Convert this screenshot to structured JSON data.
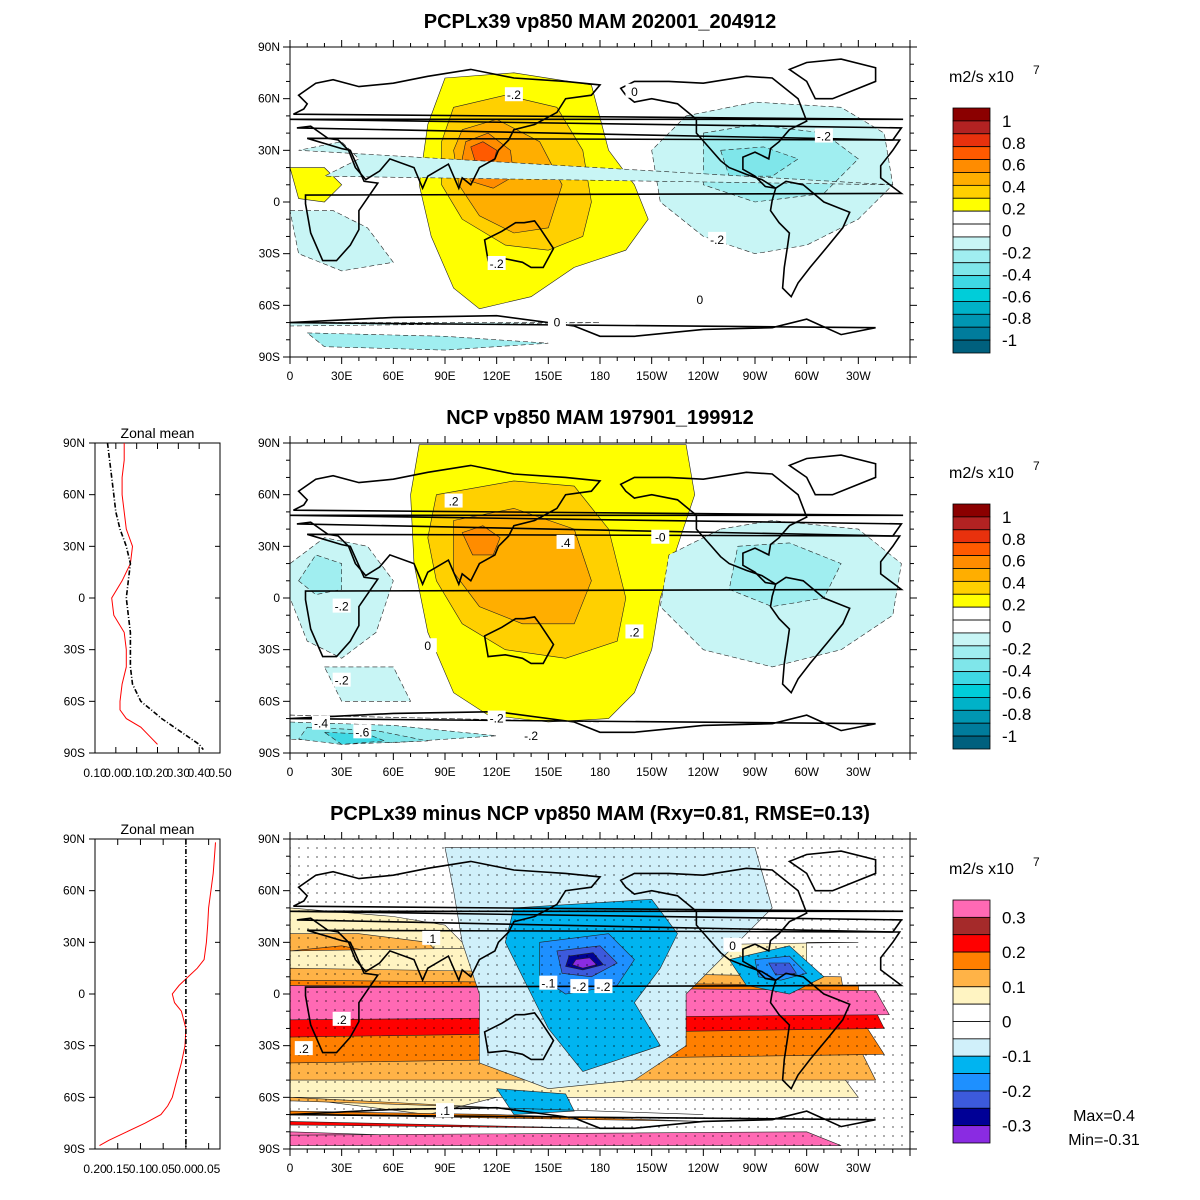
{
  "chart_data": [
    {
      "type": "contour-map",
      "title": "PCPLx39 vp850 MAM 202001_204912",
      "units": "m2/s x10",
      "units_exponent": "7",
      "xticks": [
        "0",
        "30E",
        "60E",
        "90E",
        "120E",
        "150E",
        "180",
        "150W",
        "120W",
        "90W",
        "60W",
        "30W"
      ],
      "yticks": [
        "90N",
        "60N",
        "30N",
        "0",
        "30S",
        "60S",
        "90S"
      ],
      "colorbar": {
        "labels": [
          "1",
          "0.8",
          "0.6",
          "0.4",
          "0.2",
          "0",
          "-0.2",
          "-0.4",
          "-0.6",
          "-0.8",
          "-1"
        ],
        "colors": [
          "#8b0000",
          "#b22222",
          "#e8310d",
          "#ff5a00",
          "#ff8c00",
          "#ffae00",
          "#ffd000",
          "#ffff00",
          "#ffffff",
          "#ffffff",
          "#c8f5f5",
          "#a0eef0",
          "#7fe6ea",
          "#3fd8e4",
          "#00cdd9",
          "#00b2c8",
          "#0096b2",
          "#007c9c",
          "#00607e"
        ]
      },
      "contour_labels": [
        {
          "text": "-.2",
          "lon": 130,
          "lat": 62
        },
        {
          "text": "0",
          "lon": 200,
          "lat": 64
        },
        {
          "text": "-.2",
          "lon": 310,
          "lat": 38
        },
        {
          "text": "-.2",
          "lon": 248,
          "lat": -22
        },
        {
          "text": "-.2",
          "lon": 120,
          "lat": -36
        },
        {
          "text": "0",
          "lon": 238,
          "lat": -57
        },
        {
          "text": "0",
          "lon": 155,
          "lat": -70
        }
      ]
    },
    {
      "type": "contour-map",
      "title": "NCP vp850 MAM 197901_199912",
      "units": "m2/s x10",
      "units_exponent": "7",
      "xticks": [
        "0",
        "30E",
        "60E",
        "90E",
        "120E",
        "150E",
        "180",
        "150W",
        "120W",
        "90W",
        "60W",
        "30W"
      ],
      "yticks": [
        "90N",
        "60N",
        "30N",
        "0",
        "30S",
        "60S",
        "90S"
      ],
      "colorbar": {
        "labels": [
          "1",
          "0.8",
          "0.6",
          "0.4",
          "0.2",
          "0",
          "-0.2",
          "-0.4",
          "-0.6",
          "-0.8",
          "-1"
        ],
        "colors": [
          "#8b0000",
          "#b22222",
          "#e8310d",
          "#ff5a00",
          "#ff8c00",
          "#ffae00",
          "#ffd000",
          "#ffff00",
          "#ffffff",
          "#ffffff",
          "#c8f5f5",
          "#a0eef0",
          "#7fe6ea",
          "#3fd8e4",
          "#00cdd9",
          "#00b2c8",
          "#0096b2",
          "#007c9c",
          "#00607e"
        ]
      },
      "contour_labels": [
        {
          "text": ".2",
          "lon": 95,
          "lat": 56
        },
        {
          "text": ".4",
          "lon": 160,
          "lat": 32
        },
        {
          "text": "-0",
          "lon": 215,
          "lat": 35
        },
        {
          "text": "-.2",
          "lon": 30,
          "lat": -5
        },
        {
          "text": "0",
          "lon": 80,
          "lat": -28
        },
        {
          "text": ".2",
          "lon": 200,
          "lat": -20
        },
        {
          "text": "-.2",
          "lon": 30,
          "lat": -48
        },
        {
          "text": "-.4",
          "lon": 18,
          "lat": -73
        },
        {
          "text": "-.6",
          "lon": 42,
          "lat": -78
        },
        {
          "text": "-.2",
          "lon": 120,
          "lat": -70
        },
        {
          "text": "-.2",
          "lon": 140,
          "lat": -80
        }
      ],
      "zonal_mean": {
        "title": "Zonal mean",
        "xticks": [
          "0.10",
          "0.00",
          "0.10",
          "0.20",
          "0.30",
          "0.40",
          "0.50"
        ],
        "xlim": [
          -0.1,
          0.5
        ],
        "yticks": [
          "90N",
          "60N",
          "30N",
          "0",
          "30S",
          "60S",
          "90S"
        ],
        "series": [
          {
            "name": "PCPLx39",
            "color": "#ff0000",
            "lat": [
              90,
              80,
              70,
              60,
              50,
              40,
              30,
              20,
              10,
              0,
              -10,
              -20,
              -30,
              -40,
              -50,
              -60,
              -65,
              -70,
              -75,
              -80,
              -85
            ],
            "values": [
              0.04,
              0.04,
              0.03,
              0.03,
              0.04,
              0.05,
              0.08,
              0.07,
              0.03,
              -0.02,
              -0.01,
              0.04,
              0.05,
              0.05,
              0.03,
              0.02,
              0.02,
              0.05,
              0.12,
              0.16,
              0.2
            ]
          },
          {
            "name": "NCP",
            "color": "#000000",
            "lat": [
              90,
              80,
              70,
              60,
              50,
              40,
              30,
              20,
              10,
              0,
              -10,
              -20,
              -30,
              -40,
              -50,
              -60,
              -65,
              -70,
              -75,
              -80,
              -85,
              -88
            ],
            "values": [
              -0.04,
              -0.03,
              -0.02,
              -0.01,
              0.0,
              0.02,
              0.05,
              0.07,
              0.06,
              0.05,
              0.06,
              0.07,
              0.07,
              0.07,
              0.08,
              0.12,
              0.17,
              0.22,
              0.28,
              0.34,
              0.4,
              0.42
            ]
          }
        ]
      }
    },
    {
      "type": "contour-map",
      "title": "PCPLx39 minus NCP vp850 MAM (Rxy=0.81, RMSE=0.13)",
      "units": "m2/s x10",
      "units_exponent": "7",
      "xticks": [
        "0",
        "30E",
        "60E",
        "90E",
        "120E",
        "150E",
        "180",
        "150W",
        "120W",
        "90W",
        "60W",
        "30W"
      ],
      "yticks": [
        "90N",
        "60N",
        "30N",
        "0",
        "30S",
        "60S",
        "90S"
      ],
      "colorbar": {
        "labels": [
          "0.3",
          "0.2",
          "0.1",
          "0",
          "-0.1",
          "-0.2",
          "-0.3"
        ],
        "colors": [
          "#ff69b4",
          "#a52a2a",
          "#ff0000",
          "#ff7f00",
          "#ffb347",
          "#fff4c2",
          "#ffffff",
          "#ffffff",
          "#d0f0fa",
          "#00b4f0",
          "#1e90ff",
          "#3c5adc",
          "#000096",
          "#8a2be2"
        ]
      },
      "contour_labels": [
        {
          "text": "-.2",
          "lon": 168,
          "lat": 4
        },
        {
          "text": "-.2",
          "lon": 182,
          "lat": 4
        },
        {
          "text": "-.1",
          "lon": 150,
          "lat": 6
        },
        {
          "text": ".2",
          "lon": 30,
          "lat": -15
        },
        {
          "text": ".2",
          "lon": 8,
          "lat": -32
        },
        {
          "text": ".1",
          "lon": 82,
          "lat": 32
        },
        {
          "text": "0",
          "lon": 257,
          "lat": 28
        },
        {
          "text": ".1",
          "lon": 90,
          "lat": -68
        }
      ],
      "zonal_mean": {
        "title": "Zonal mean",
        "xticks": [
          "0.20",
          "0.15",
          "0.10",
          "0.05",
          "0.00",
          "0.05"
        ],
        "xlim": [
          -0.2,
          0.075
        ],
        "yticks": [
          "90N",
          "60N",
          "30N",
          "0",
          "30S",
          "60S",
          "90S"
        ],
        "series": [
          {
            "name": "difference",
            "color": "#ff0000",
            "lat": [
              88,
              80,
              70,
              60,
              50,
              40,
              30,
              20,
              15,
              10,
              5,
              0,
              -5,
              -10,
              -20,
              -30,
              -40,
              -50,
              -60,
              -65,
              -70,
              -75,
              -80,
              -85,
              -88
            ],
            "values": [
              0.065,
              0.063,
              0.06,
              0.055,
              0.05,
              0.048,
              0.045,
              0.04,
              0.025,
              0.005,
              -0.015,
              -0.03,
              -0.025,
              -0.01,
              0.0,
              -0.002,
              -0.01,
              -0.02,
              -0.03,
              -0.04,
              -0.055,
              -0.09,
              -0.13,
              -0.17,
              -0.19
            ]
          },
          {
            "name": "zero",
            "color": "#000000",
            "lat": [
              90,
              -90
            ],
            "values": [
              0,
              0
            ]
          }
        ]
      },
      "stats": {
        "max": "Max=0.4",
        "min": "Min=-0.31"
      }
    }
  ]
}
